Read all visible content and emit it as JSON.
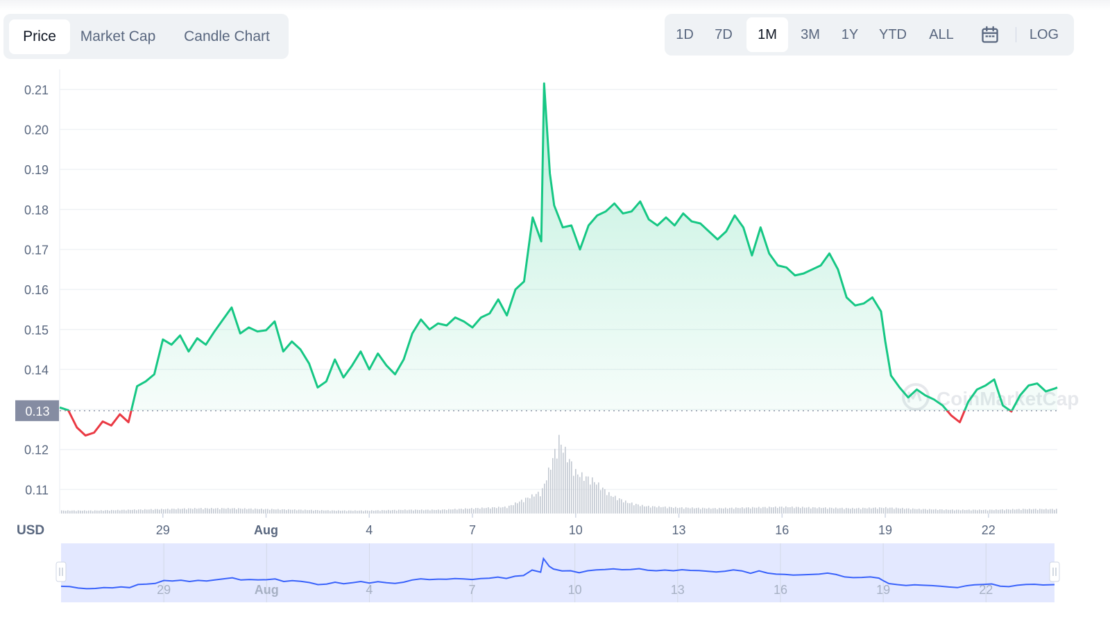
{
  "chart_tabs": [
    "Price",
    "Market Cap",
    "Candle Chart"
  ],
  "active_chart_tab": "Price",
  "range_tabs": [
    "1D",
    "7D",
    "1M",
    "3M",
    "1Y",
    "YTD",
    "ALL"
  ],
  "active_range_tab": "1M",
  "log_label": "LOG",
  "icons": {
    "calendar": "calendar-icon",
    "watermark_logo": "coinmarketcap-logo"
  },
  "watermark": "CoinMarketCap",
  "colors": {
    "up": "#16c784",
    "down": "#ea3943",
    "volume": "#c2c8d1",
    "navigator_line": "#3861fb",
    "navigator_fill": "#e3e8ff",
    "current_price_label_bg": "#858ca2"
  },
  "chart_data": {
    "type": "line",
    "currency_label": "USD",
    "baseline_price": 0.1297,
    "current_price_label": "0.13",
    "ylim": [
      0.104,
      0.215
    ],
    "y_ticks": [
      0.11,
      0.12,
      0.13,
      0.14,
      0.15,
      0.16,
      0.17,
      0.18,
      0.19,
      0.2,
      0.21
    ],
    "y_tick_labels": [
      "0.11",
      "0.12",
      "0.13",
      "0.14",
      "0.15",
      "0.16",
      "0.17",
      "0.18",
      "0.19",
      "0.20",
      "0.21"
    ],
    "x_range": [
      "2023-07-26",
      "2023-08-24T00:00"
    ],
    "x_ticks": [
      "2023-07-29",
      "2023-08-01",
      "2023-08-04",
      "2023-08-07",
      "2023-08-10",
      "2023-08-13",
      "2023-08-16",
      "2023-08-19",
      "2023-08-22"
    ],
    "x_tick_labels": [
      "29",
      "Aug",
      "4",
      "7",
      "10",
      "13",
      "16",
      "19",
      "22"
    ],
    "grid": true,
    "series": [
      {
        "type": "line",
        "values": [
          [
            "2023-07-26T00:00",
            0.1305
          ],
          [
            "2023-07-26T06:00",
            0.1298
          ],
          [
            "2023-07-26T12:00",
            0.1255
          ],
          [
            "2023-07-26T18:00",
            0.1235
          ],
          [
            "2023-07-27T00:00",
            0.1242
          ],
          [
            "2023-07-27T06:00",
            0.127
          ],
          [
            "2023-07-27T12:00",
            0.126
          ],
          [
            "2023-07-27T18:00",
            0.1288
          ],
          [
            "2023-07-28T00:00",
            0.1268
          ],
          [
            "2023-07-28T06:00",
            0.1358
          ],
          [
            "2023-07-28T12:00",
            0.137
          ],
          [
            "2023-07-28T18:00",
            0.1388
          ],
          [
            "2023-07-29T00:00",
            0.1475
          ],
          [
            "2023-07-29T06:00",
            0.1462
          ],
          [
            "2023-07-29T12:00",
            0.1485
          ],
          [
            "2023-07-29T18:00",
            0.1445
          ],
          [
            "2023-07-30T00:00",
            0.1478
          ],
          [
            "2023-07-30T06:00",
            0.1462
          ],
          [
            "2023-07-30T12:00",
            0.1495
          ],
          [
            "2023-07-30T18:00",
            0.1525
          ],
          [
            "2023-07-31T00:00",
            0.1555
          ],
          [
            "2023-07-31T06:00",
            0.149
          ],
          [
            "2023-07-31T12:00",
            0.1505
          ],
          [
            "2023-07-31T18:00",
            0.1495
          ],
          [
            "2023-08-01T00:00",
            0.1498
          ],
          [
            "2023-08-01T06:00",
            0.152
          ],
          [
            "2023-08-01T12:00",
            0.1445
          ],
          [
            "2023-08-01T18:00",
            0.147
          ],
          [
            "2023-08-02T00:00",
            0.145
          ],
          [
            "2023-08-02T06:00",
            0.1415
          ],
          [
            "2023-08-02T12:00",
            0.1355
          ],
          [
            "2023-08-02T18:00",
            0.137
          ],
          [
            "2023-08-03T00:00",
            0.1425
          ],
          [
            "2023-08-03T06:00",
            0.138
          ],
          [
            "2023-08-03T12:00",
            0.141
          ],
          [
            "2023-08-03T18:00",
            0.1445
          ],
          [
            "2023-08-04T00:00",
            0.14
          ],
          [
            "2023-08-04T06:00",
            0.144
          ],
          [
            "2023-08-04T12:00",
            0.141
          ],
          [
            "2023-08-04T18:00",
            0.1388
          ],
          [
            "2023-08-05T00:00",
            0.1425
          ],
          [
            "2023-08-05T06:00",
            0.149
          ],
          [
            "2023-08-05T12:00",
            0.1525
          ],
          [
            "2023-08-05T18:00",
            0.15
          ],
          [
            "2023-08-06T00:00",
            0.1515
          ],
          [
            "2023-08-06T06:00",
            0.151
          ],
          [
            "2023-08-06T12:00",
            0.153
          ],
          [
            "2023-08-06T18:00",
            0.152
          ],
          [
            "2023-08-07T00:00",
            0.1505
          ],
          [
            "2023-08-07T06:00",
            0.153
          ],
          [
            "2023-08-07T12:00",
            0.154
          ],
          [
            "2023-08-07T18:00",
            0.1575
          ],
          [
            "2023-08-08T00:00",
            0.1535
          ],
          [
            "2023-08-08T06:00",
            0.16
          ],
          [
            "2023-08-08T12:00",
            0.162
          ],
          [
            "2023-08-08T18:00",
            0.178
          ],
          [
            "2023-08-09T00:00",
            0.172
          ],
          [
            "2023-08-09T02:00",
            0.2115
          ],
          [
            "2023-08-09T06:00",
            0.189
          ],
          [
            "2023-08-09T09:00",
            0.181
          ],
          [
            "2023-08-09T15:00",
            0.1755
          ],
          [
            "2023-08-09T21:00",
            0.176
          ],
          [
            "2023-08-10T03:00",
            0.17
          ],
          [
            "2023-08-10T09:00",
            0.176
          ],
          [
            "2023-08-10T15:00",
            0.1785
          ],
          [
            "2023-08-10T21:00",
            0.1795
          ],
          [
            "2023-08-11T03:00",
            0.1815
          ],
          [
            "2023-08-11T09:00",
            0.179
          ],
          [
            "2023-08-11T15:00",
            0.1795
          ],
          [
            "2023-08-11T21:00",
            0.182
          ],
          [
            "2023-08-12T03:00",
            0.1775
          ],
          [
            "2023-08-12T09:00",
            0.176
          ],
          [
            "2023-08-12T15:00",
            0.178
          ],
          [
            "2023-08-12T21:00",
            0.176
          ],
          [
            "2023-08-13T03:00",
            0.179
          ],
          [
            "2023-08-13T09:00",
            0.177
          ],
          [
            "2023-08-13T15:00",
            0.1765
          ],
          [
            "2023-08-13T21:00",
            0.1745
          ],
          [
            "2023-08-14T03:00",
            0.1725
          ],
          [
            "2023-08-14T09:00",
            0.1745
          ],
          [
            "2023-08-14T15:00",
            0.1785
          ],
          [
            "2023-08-14T21:00",
            0.1755
          ],
          [
            "2023-08-15T03:00",
            0.1685
          ],
          [
            "2023-08-15T09:00",
            0.1755
          ],
          [
            "2023-08-15T15:00",
            0.169
          ],
          [
            "2023-08-15T21:00",
            0.166
          ],
          [
            "2023-08-16T03:00",
            0.1655
          ],
          [
            "2023-08-16T09:00",
            0.1635
          ],
          [
            "2023-08-16T15:00",
            0.164
          ],
          [
            "2023-08-16T21:00",
            0.165
          ],
          [
            "2023-08-17T03:00",
            0.166
          ],
          [
            "2023-08-17T09:00",
            0.169
          ],
          [
            "2023-08-17T15:00",
            0.165
          ],
          [
            "2023-08-17T21:00",
            0.158
          ],
          [
            "2023-08-18T03:00",
            0.156
          ],
          [
            "2023-08-18T09:00",
            0.1565
          ],
          [
            "2023-08-18T15:00",
            0.158
          ],
          [
            "2023-08-18T21:00",
            0.1545
          ],
          [
            "2023-08-19T00:00",
            0.147
          ],
          [
            "2023-08-19T04:00",
            0.1385
          ],
          [
            "2023-08-19T10:00",
            0.1355
          ],
          [
            "2023-08-19T16:00",
            0.133
          ],
          [
            "2023-08-19T22:00",
            0.135
          ],
          [
            "2023-08-20T04:00",
            0.1335
          ],
          [
            "2023-08-20T10:00",
            0.1325
          ],
          [
            "2023-08-20T16:00",
            0.131
          ],
          [
            "2023-08-20T22:00",
            0.1285
          ],
          [
            "2023-08-21T04:00",
            0.1268
          ],
          [
            "2023-08-21T10:00",
            0.132
          ],
          [
            "2023-08-21T16:00",
            0.135
          ],
          [
            "2023-08-21T22:00",
            0.136
          ],
          [
            "2023-08-22T04:00",
            0.1375
          ],
          [
            "2023-08-22T10:00",
            0.131
          ],
          [
            "2023-08-22T16:00",
            0.1295
          ],
          [
            "2023-08-22T22:00",
            0.1335
          ],
          [
            "2023-08-23T04:00",
            0.136
          ],
          [
            "2023-08-23T10:00",
            0.1365
          ],
          [
            "2023-08-23T16:00",
            0.1345
          ],
          [
            "2023-08-23T22:00",
            0.1352
          ],
          [
            "2023-08-24T00:00",
            0.1355
          ]
        ]
      },
      {
        "type": "volume",
        "values": [
          [
            "2023-07-26",
            4
          ],
          [
            "2023-07-27",
            4
          ],
          [
            "2023-07-28",
            5
          ],
          [
            "2023-07-29",
            6
          ],
          [
            "2023-07-30",
            7
          ],
          [
            "2023-07-31",
            7
          ],
          [
            "2023-08-01",
            6
          ],
          [
            "2023-08-02",
            5
          ],
          [
            "2023-08-03",
            4
          ],
          [
            "2023-08-04",
            4
          ],
          [
            "2023-08-05",
            5
          ],
          [
            "2023-08-06",
            5
          ],
          [
            "2023-08-07",
            7
          ],
          [
            "2023-08-08",
            9
          ],
          [
            "2023-08-09T00:00",
            30
          ],
          [
            "2023-08-09T12:00",
            100
          ],
          [
            "2023-08-10T00:00",
            55
          ],
          [
            "2023-08-10T12:00",
            45
          ],
          [
            "2023-08-11T00:00",
            25
          ],
          [
            "2023-08-11T12:00",
            15
          ],
          [
            "2023-08-12",
            10
          ],
          [
            "2023-08-13",
            8
          ],
          [
            "2023-08-14",
            7
          ],
          [
            "2023-08-15",
            8
          ],
          [
            "2023-08-16",
            9
          ],
          [
            "2023-08-17",
            8
          ],
          [
            "2023-08-18",
            7
          ],
          [
            "2023-08-19",
            8
          ],
          [
            "2023-08-20",
            6
          ],
          [
            "2023-08-21",
            5
          ],
          [
            "2023-08-22",
            5
          ],
          [
            "2023-08-23",
            6
          ],
          [
            "2023-08-24",
            6
          ]
        ]
      }
    ]
  }
}
